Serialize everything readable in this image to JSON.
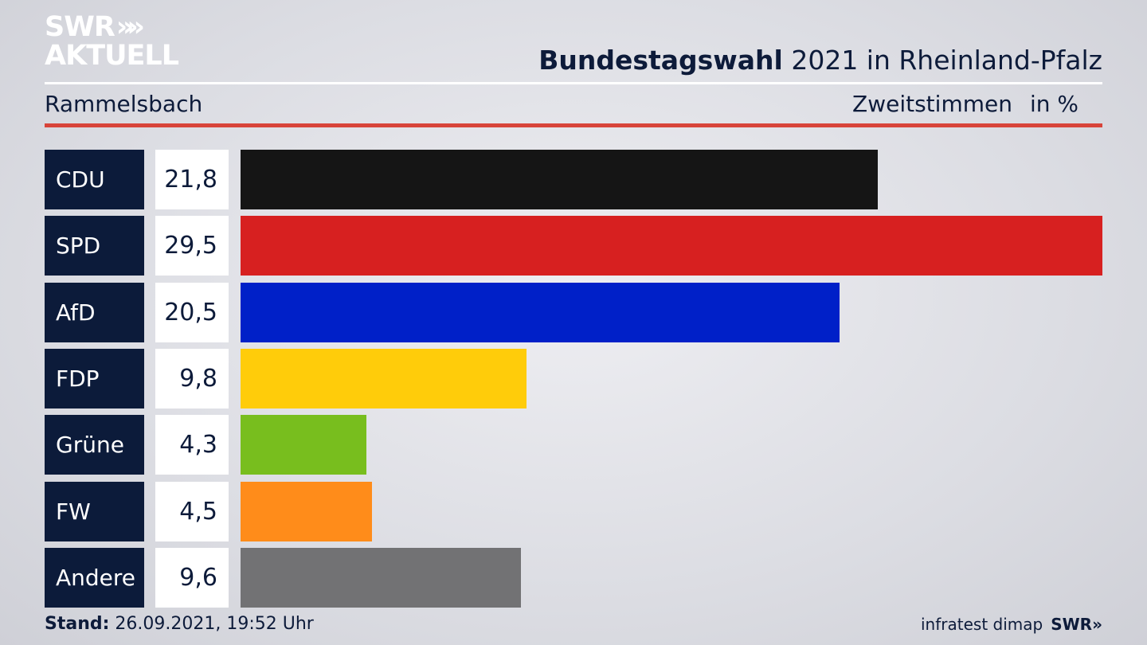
{
  "brand": {
    "logo_line1": "SWR",
    "logo_chevrons": "»»",
    "logo_line2": "AKTUELL"
  },
  "header": {
    "title_bold": "Bundestagswahl",
    "title_rest": " 2021 in Rheinland-Pfalz",
    "location": "Rammelsbach",
    "measure": "Zweitstimmen",
    "unit": "in %"
  },
  "chart_data": {
    "type": "bar",
    "orientation": "horizontal",
    "title": "Bundestagswahl 2021 in Rheinland-Pfalz",
    "subtitle": "Rammelsbach",
    "xlabel": "",
    "ylabel": "",
    "unit": "in %",
    "categories": [
      "CDU",
      "SPD",
      "AfD",
      "FDP",
      "Grüne",
      "FW",
      "Andere"
    ],
    "values": [
      21.8,
      29.5,
      20.5,
      9.8,
      4.3,
      4.5,
      9.6
    ],
    "value_labels": [
      "21,8",
      "29,5",
      "20,5",
      "9,8",
      "4,3",
      "4,5",
      "9,6"
    ],
    "colors": [
      "#151515",
      "#d72020",
      "#0020c8",
      "#ffcc0a",
      "#78be1e",
      "#ff8c1a",
      "#727274"
    ],
    "xlim": [
      0,
      29.5
    ],
    "grid": false,
    "legend": "none"
  },
  "footer": {
    "stand_label": "Stand:",
    "stand_value": " 26.09.2021, 19:52 Uhr",
    "source": "infratest dimap",
    "logo": "SWR»"
  }
}
